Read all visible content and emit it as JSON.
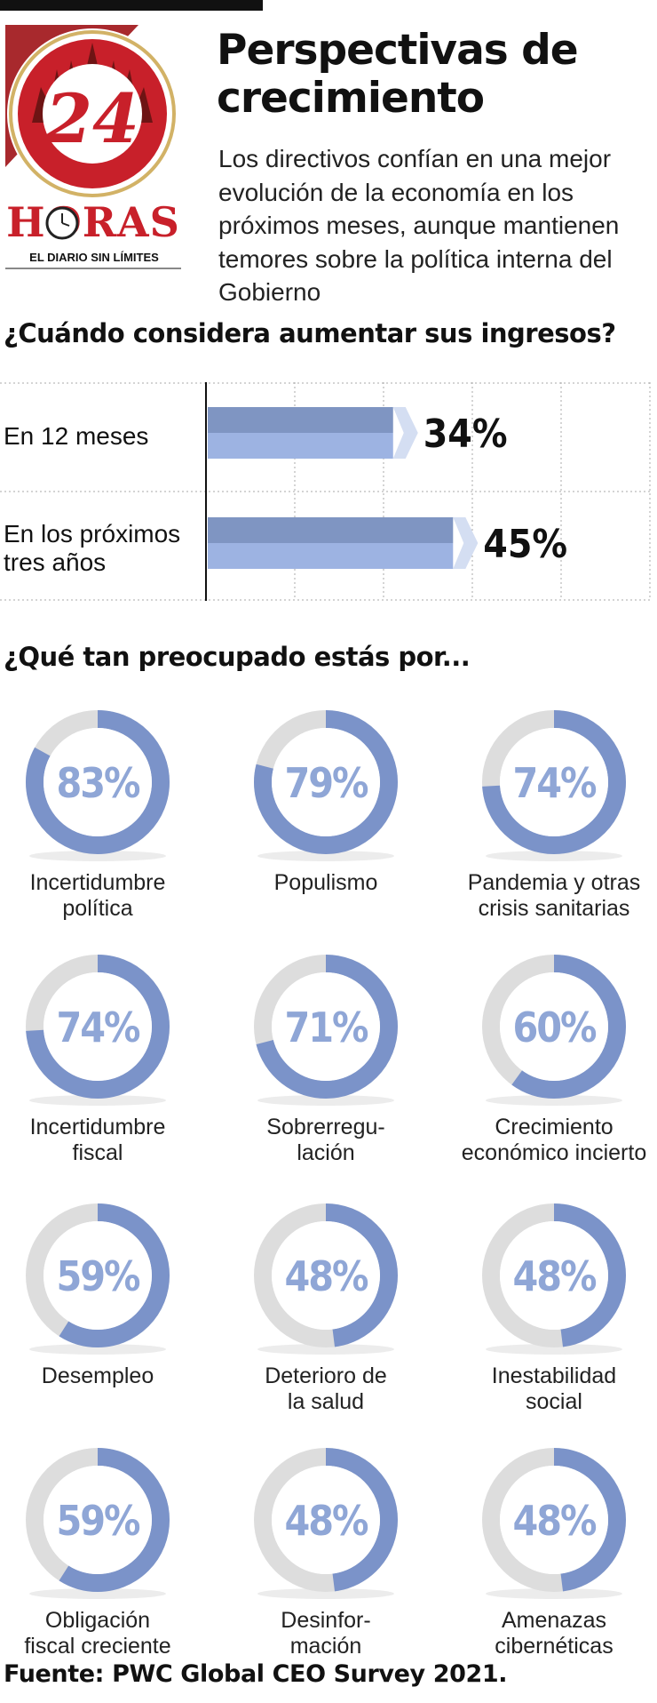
{
  "logo": {
    "number": "24",
    "name": "HORAS",
    "tagline": "EL DIARIO SIN LÍMITES"
  },
  "header": {
    "title": "Perspectivas de crecimiento",
    "subtitle": "Los directivos confían en una mejor evolución de la economía en los próximos meses, aunque mantienen temores sobre la política interna del Gobierno"
  },
  "section1_title": "¿Cuándo considera aumentar sus ingresos?",
  "section2_title": "¿Qué tan preocupado estás por...",
  "source": "Fuente: PWC Global CEO Survey 2021.",
  "colors": {
    "bar_top": "#7f95c2",
    "bar_bottom": "#9db3e2",
    "ring_fill": "#7b93c9",
    "ring_rest": "#dddddd",
    "value_text": "#8fa6d6"
  },
  "chart_data": [
    {
      "type": "bar",
      "orientation": "horizontal",
      "title": "¿Cuándo considera aumentar sus ingresos?",
      "categories": [
        [
          "En 12 meses"
        ],
        [
          "En los próximos",
          "tres años"
        ]
      ],
      "values": [
        34,
        45
      ],
      "value_labels": [
        "34%",
        "45%"
      ],
      "unit": "%",
      "grid": true
    },
    {
      "type": "pie",
      "variant": "donut",
      "title": "¿Qué tan preocupado estás por...",
      "items": [
        {
          "label": [
            "Incertidumbre",
            "política"
          ],
          "value": 83,
          "value_label": "83%"
        },
        {
          "label": [
            "Populismo"
          ],
          "value": 79,
          "value_label": "79%"
        },
        {
          "label": [
            "Pandemia y otras",
            "crisis sanitarias"
          ],
          "value": 74,
          "value_label": "74%"
        },
        {
          "label": [
            "Incertidumbre",
            "fiscal"
          ],
          "value": 74,
          "value_label": "74%"
        },
        {
          "label": [
            "Sobrerregu-",
            "lación"
          ],
          "value": 71,
          "value_label": "71%"
        },
        {
          "label": [
            "Crecimiento",
            "económico incierto"
          ],
          "value": 60,
          "value_label": "60%"
        },
        {
          "label": [
            "Desempleo"
          ],
          "value": 59,
          "value_label": "59%"
        },
        {
          "label": [
            "Deterioro de",
            "la salud"
          ],
          "value": 48,
          "value_label": "48%"
        },
        {
          "label": [
            "Inestabilidad",
            "social"
          ],
          "value": 48,
          "value_label": "48%"
        },
        {
          "label": [
            "Obligación",
            "fiscal creciente"
          ],
          "value": 59,
          "value_label": "59%"
        },
        {
          "label": [
            "Desinfor-",
            "mación"
          ],
          "value": 48,
          "value_label": "48%"
        },
        {
          "label": [
            "Amenazas",
            "cibernéticas"
          ],
          "value": 48,
          "value_label": "48%"
        }
      ]
    }
  ]
}
